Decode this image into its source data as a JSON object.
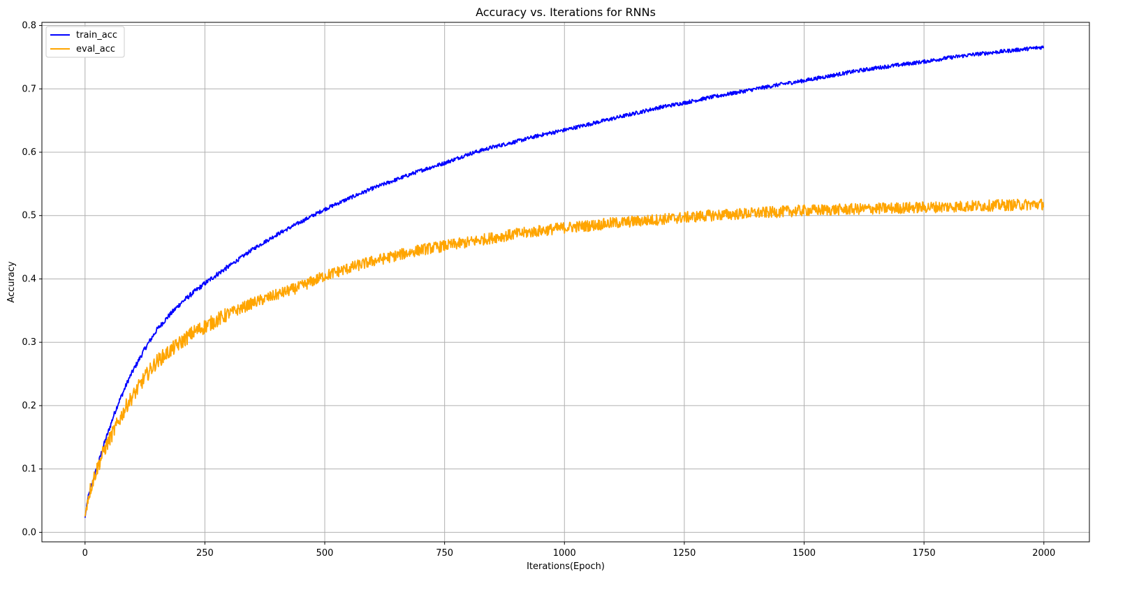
{
  "chart_data": {
    "type": "line",
    "title": "Accuracy vs. Iterations for RNNs",
    "xlabel": "Iterations(Epoch)",
    "ylabel": "Accuracy",
    "xlim": [
      -90,
      2095
    ],
    "ylim": [
      -0.015,
      0.805
    ],
    "xticks": [
      0,
      250,
      500,
      750,
      1000,
      1250,
      1500,
      1750,
      2000
    ],
    "xtick_labels": [
      "0",
      "250",
      "500",
      "750",
      "1000",
      "1250",
      "1500",
      "1750",
      "2000"
    ],
    "yticks": [
      0.0,
      0.1,
      0.2,
      0.3,
      0.4,
      0.5,
      0.6,
      0.7,
      0.8
    ],
    "ytick_labels": [
      "0.0",
      "0.1",
      "0.2",
      "0.3",
      "0.4",
      "0.5",
      "0.6",
      "0.7",
      "0.8"
    ],
    "grid": true,
    "legend_position": "top-left",
    "series": [
      {
        "name": "train_acc",
        "color": "#0000ff",
        "x": [
          0,
          5,
          10,
          20,
          30,
          40,
          50,
          60,
          70,
          80,
          90,
          100,
          125,
          150,
          175,
          200,
          225,
          250,
          275,
          300,
          350,
          400,
          450,
          500,
          550,
          600,
          650,
          700,
          750,
          800,
          850,
          900,
          950,
          1000,
          1050,
          1100,
          1150,
          1200,
          1250,
          1300,
          1350,
          1400,
          1450,
          1500,
          1550,
          1600,
          1650,
          1700,
          1750,
          1800,
          1850,
          1900,
          1950,
          2000
        ],
        "y": [
          0.023,
          0.05,
          0.065,
          0.09,
          0.115,
          0.14,
          0.162,
          0.185,
          0.205,
          0.222,
          0.24,
          0.255,
          0.29,
          0.32,
          0.342,
          0.362,
          0.378,
          0.393,
          0.407,
          0.42,
          0.447,
          0.47,
          0.49,
          0.51,
          0.527,
          0.543,
          0.557,
          0.571,
          0.583,
          0.597,
          0.608,
          0.617,
          0.627,
          0.635,
          0.644,
          0.653,
          0.662,
          0.671,
          0.678,
          0.686,
          0.693,
          0.7,
          0.707,
          0.713,
          0.72,
          0.727,
          0.733,
          0.738,
          0.743,
          0.749,
          0.754,
          0.758,
          0.762,
          0.766
        ],
        "noise": 0.006
      },
      {
        "name": "eval_acc",
        "color": "#ffa500",
        "x": [
          0,
          5,
          10,
          20,
          30,
          40,
          50,
          60,
          70,
          80,
          90,
          100,
          125,
          150,
          175,
          200,
          225,
          250,
          275,
          300,
          350,
          400,
          450,
          500,
          550,
          600,
          650,
          700,
          750,
          800,
          850,
          900,
          950,
          1000,
          1050,
          1100,
          1150,
          1200,
          1250,
          1300,
          1350,
          1400,
          1450,
          1500,
          1550,
          1600,
          1650,
          1700,
          1750,
          1800,
          1850,
          1900,
          1950,
          2000
        ],
        "y": [
          0.025,
          0.05,
          0.065,
          0.09,
          0.11,
          0.13,
          0.145,
          0.16,
          0.175,
          0.19,
          0.205,
          0.215,
          0.245,
          0.27,
          0.285,
          0.3,
          0.315,
          0.325,
          0.335,
          0.345,
          0.362,
          0.375,
          0.388,
          0.405,
          0.417,
          0.428,
          0.437,
          0.446,
          0.452,
          0.458,
          0.465,
          0.471,
          0.476,
          0.481,
          0.484,
          0.488,
          0.491,
          0.494,
          0.497,
          0.5,
          0.502,
          0.504,
          0.506,
          0.508,
          0.509,
          0.51,
          0.511,
          0.512,
          0.513,
          0.514,
          0.515,
          0.516,
          0.517,
          0.518
        ],
        "noise": 0.018
      }
    ]
  }
}
